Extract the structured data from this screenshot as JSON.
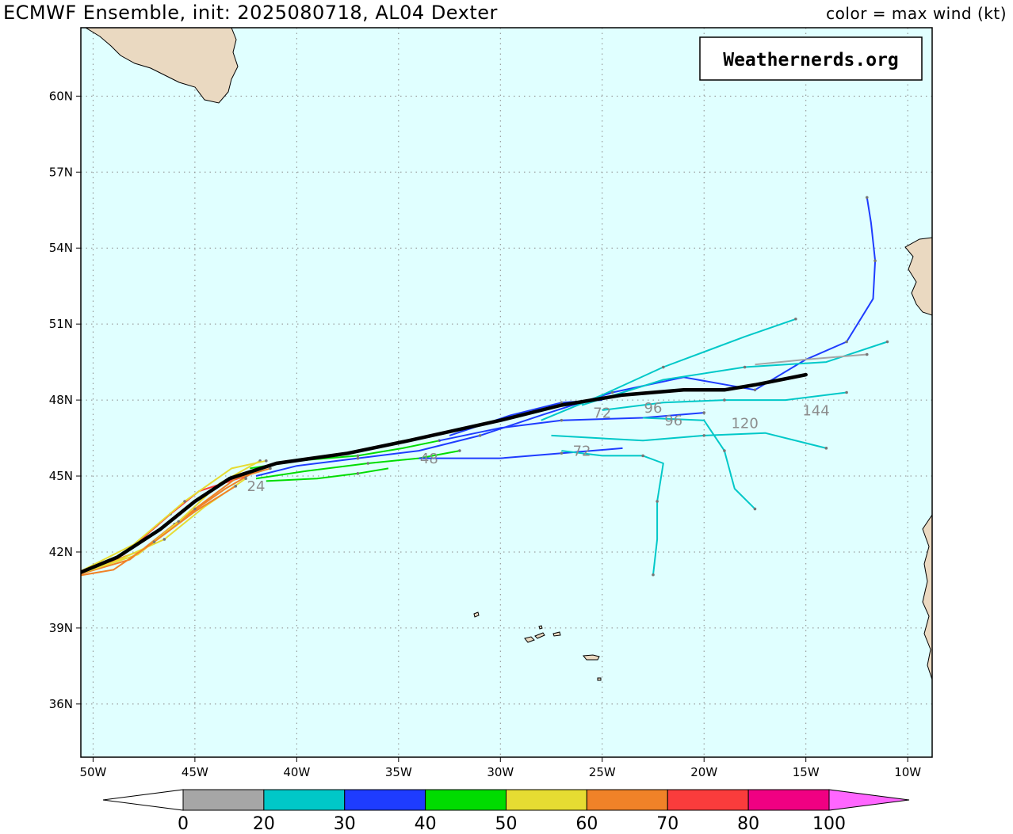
{
  "header": {
    "title": "ECMWF Ensemble, init: 2025080718, AL04 Dexter",
    "legend_caption": "color = max wind (kt)"
  },
  "watermark": "Weathernerds.org",
  "axes": {
    "lat_labels": [
      "60N",
      "57N",
      "54N",
      "51N",
      "48N",
      "45N",
      "42N",
      "39N",
      "36N"
    ],
    "lat_values": [
      60,
      57,
      54,
      51,
      48,
      45,
      42,
      39,
      36
    ],
    "lon_labels": [
      "50W",
      "45W",
      "40W",
      "35W",
      "30W",
      "25W",
      "20W",
      "15W",
      "10W"
    ],
    "lon_values": [
      -50,
      -45,
      -40,
      -35,
      -30,
      -25,
      -20,
      -15,
      -10
    ],
    "lon_range": [
      -50.6,
      -8.8
    ],
    "lat_range": [
      33.9,
      62.7
    ]
  },
  "colors": {
    "ocean": "#e0ffff",
    "land": "#ead9c1",
    "grid": "#8a8a8a",
    "mean_track": "#000000",
    "hour_label": "#8c8c8c"
  },
  "colorbar": {
    "ticks": [
      "0",
      "20",
      "30",
      "40",
      "50",
      "60",
      "70",
      "80",
      "100"
    ],
    "bins": [
      {
        "color": "#a6a6a6"
      },
      {
        "color": "#00c8c8"
      },
      {
        "color": "#1e3cff"
      },
      {
        "color": "#00dc00"
      },
      {
        "color": "#e6dc32"
      },
      {
        "color": "#f08228"
      },
      {
        "color": "#fa3c3c"
      },
      {
        "color": "#f00082"
      }
    ],
    "over_color": "#ff66ff",
    "under_color": "#ffffff"
  },
  "chart_data": {
    "type": "map",
    "title": "ECMWF Ensemble, init: 2025080718, AL04 Dexter",
    "colorbar_title": "color = max wind (kt)",
    "mean_track": [
      [
        -51.2,
        41.0
      ],
      [
        -48.8,
        41.8
      ],
      [
        -46.7,
        42.9
      ],
      [
        -45.0,
        44.0
      ],
      [
        -43.3,
        44.9
      ],
      [
        -41.0,
        45.5
      ],
      [
        -37.5,
        45.9
      ],
      [
        -34.5,
        46.4
      ],
      [
        -30.0,
        47.2
      ],
      [
        -27.0,
        47.8
      ],
      [
        -24.0,
        48.2
      ],
      [
        -21.0,
        48.4
      ],
      [
        -19.0,
        48.4
      ],
      [
        -17.5,
        48.6
      ],
      [
        -15.0,
        49.0
      ]
    ],
    "members": [
      {
        "wind_class": "60-70",
        "points": [
          [
            -51.2,
            41.0
          ],
          [
            -48.2,
            41.7
          ],
          [
            -46.0,
            43.1
          ],
          [
            -43.5,
            44.5
          ],
          [
            -42.0,
            45.2
          ]
        ]
      },
      {
        "wind_class": "70-80",
        "points": [
          [
            -51.2,
            41.0
          ],
          [
            -48.5,
            41.9
          ],
          [
            -46.2,
            43.5
          ],
          [
            -44.8,
            44.4
          ],
          [
            -42.5,
            45.0
          ]
        ]
      },
      {
        "wind_class": "60-70",
        "points": [
          [
            -51.2,
            41.0
          ],
          [
            -47.5,
            42.1
          ],
          [
            -45.0,
            43.7
          ],
          [
            -43.0,
            44.9
          ],
          [
            -41.3,
            45.3
          ]
        ]
      },
      {
        "wind_class": "50-60",
        "points": [
          [
            -51.2,
            41.0
          ],
          [
            -47.8,
            41.9
          ],
          [
            -45.8,
            43.2
          ],
          [
            -43.8,
            44.7
          ],
          [
            -41.8,
            45.6
          ]
        ]
      },
      {
        "wind_class": "50-60",
        "points": [
          [
            -51.2,
            41.0
          ],
          [
            -49.0,
            41.6
          ],
          [
            -46.5,
            42.5
          ],
          [
            -44.5,
            43.8
          ],
          [
            -42.5,
            44.9
          ]
        ]
      },
      {
        "wind_class": "60-70",
        "points": [
          [
            -51.2,
            41.0
          ],
          [
            -49.0,
            41.3
          ],
          [
            -47.0,
            42.4
          ],
          [
            -45.0,
            43.6
          ],
          [
            -43.0,
            44.6
          ]
        ]
      },
      {
        "wind_class": "50-60",
        "points": [
          [
            -51.2,
            41.0
          ],
          [
            -48.0,
            42.3
          ],
          [
            -45.5,
            44.0
          ],
          [
            -43.2,
            45.3
          ],
          [
            -41.5,
            45.6
          ]
        ]
      },
      {
        "wind_class": "40-50",
        "points": [
          [
            -42.3,
            45.3
          ],
          [
            -40.0,
            45.6
          ],
          [
            -37.0,
            45.8
          ],
          [
            -34.8,
            46.1
          ],
          [
            -33.0,
            46.4
          ]
        ]
      },
      {
        "wind_class": "40-50",
        "points": [
          [
            -42.0,
            44.9
          ],
          [
            -39.5,
            45.2
          ],
          [
            -36.5,
            45.5
          ],
          [
            -34.0,
            45.7
          ],
          [
            -32.0,
            46.0
          ]
        ]
      },
      {
        "wind_class": "40-50",
        "points": [
          [
            -41.5,
            44.8
          ],
          [
            -39.0,
            44.9
          ],
          [
            -37.0,
            45.1
          ],
          [
            -35.5,
            45.3
          ]
        ]
      },
      {
        "wind_class": "30-40",
        "points": [
          [
            -42.0,
            45.0
          ],
          [
            -40.0,
            45.4
          ],
          [
            -37.0,
            45.7
          ],
          [
            -34.0,
            46.0
          ],
          [
            -31.0,
            46.6
          ],
          [
            -28.0,
            47.4
          ],
          [
            -24.5,
            48.3
          ],
          [
            -21.0,
            48.9
          ],
          [
            -17.5,
            48.4
          ],
          [
            -15.0,
            49.6
          ],
          [
            -13.0,
            50.3
          ],
          [
            -11.7,
            52.0
          ],
          [
            -11.6,
            53.5
          ],
          [
            -11.8,
            55.0
          ],
          [
            -12.0,
            56.0
          ]
        ]
      },
      {
        "wind_class": "30-40",
        "points": [
          [
            -33.0,
            46.4
          ],
          [
            -30.0,
            46.9
          ],
          [
            -27.0,
            47.2
          ],
          [
            -23.0,
            47.3
          ],
          [
            -20.0,
            47.5
          ]
        ]
      },
      {
        "wind_class": "30-40",
        "points": [
          [
            -34.0,
            45.7
          ],
          [
            -30.0,
            45.7
          ],
          [
            -27.0,
            45.9
          ],
          [
            -24.0,
            46.1
          ]
        ]
      },
      {
        "wind_class": "30-40",
        "points": [
          [
            -32.5,
            46.6
          ],
          [
            -29.5,
            47.4
          ],
          [
            -27.0,
            47.9
          ],
          [
            -25.0,
            48.0
          ]
        ]
      },
      {
        "wind_class": "20-30",
        "points": [
          [
            -28.0,
            47.2
          ],
          [
            -25.0,
            48.2
          ],
          [
            -22.0,
            49.3
          ],
          [
            -18.0,
            50.5
          ],
          [
            -15.5,
            51.2
          ]
        ]
      },
      {
        "wind_class": "20-30",
        "points": [
          [
            -26.0,
            47.8
          ],
          [
            -22.0,
            48.8
          ],
          [
            -18.0,
            49.3
          ],
          [
            -14.0,
            49.5
          ],
          [
            -11.0,
            50.3
          ]
        ]
      },
      {
        "wind_class": "20-30",
        "points": [
          [
            -27.5,
            46.6
          ],
          [
            -23.0,
            46.4
          ],
          [
            -20.0,
            46.6
          ],
          [
            -17.0,
            46.7
          ],
          [
            -14.0,
            46.1
          ]
        ]
      },
      {
        "wind_class": "20-30",
        "points": [
          [
            -27.0,
            46.0
          ],
          [
            -25.0,
            45.8
          ],
          [
            -23.0,
            45.8
          ],
          [
            -22.0,
            45.5
          ],
          [
            -22.3,
            44.0
          ],
          [
            -22.3,
            42.5
          ],
          [
            -22.5,
            41.1
          ]
        ]
      },
      {
        "wind_class": "20-30",
        "points": [
          [
            -25.0,
            47.6
          ],
          [
            -22.0,
            47.9
          ],
          [
            -19.0,
            48.0
          ],
          [
            -16.0,
            48.0
          ],
          [
            -13.0,
            48.3
          ]
        ]
      },
      {
        "wind_class": "20-30",
        "points": [
          [
            -23.0,
            47.3
          ],
          [
            -20.0,
            47.2
          ],
          [
            -19.0,
            46.0
          ],
          [
            -18.5,
            44.5
          ],
          [
            -17.5,
            43.7
          ]
        ]
      },
      {
        "wind_class": "10-20",
        "points": [
          [
            -17.5,
            49.4
          ],
          [
            -15.0,
            49.6
          ],
          [
            -12.0,
            49.8
          ]
        ]
      }
    ],
    "hour_labels": [
      {
        "text": "24",
        "lon": -42.0,
        "lat": 44.4
      },
      {
        "text": "48",
        "lon": -33.5,
        "lat": 45.5
      },
      {
        "text": "72",
        "lon": -26.0,
        "lat": 45.8
      },
      {
        "text": "72",
        "lon": -25.0,
        "lat": 47.3
      },
      {
        "text": "96",
        "lon": -22.5,
        "lat": 47.5
      },
      {
        "text": "96",
        "lon": -21.5,
        "lat": 47.0
      },
      {
        "text": "120",
        "lon": -18.0,
        "lat": 46.9
      },
      {
        "text": "144",
        "lon": -14.5,
        "lat": 47.4
      }
    ]
  }
}
